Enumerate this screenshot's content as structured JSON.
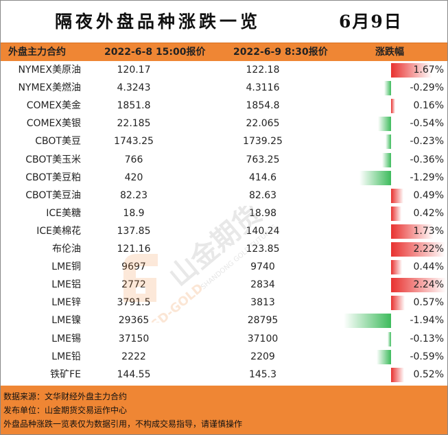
{
  "title": "隔夜外盘品种涨跌一览",
  "date": "6月9日",
  "headers": {
    "name": "外盘主力合约",
    "price1": "2022-6-8 15:00报价",
    "price2": "2022-6-9 8:30报价",
    "change": "涨跌幅"
  },
  "rows": [
    {
      "name": "NYMEX美原油",
      "p1": "120.17",
      "p2": "122.18",
      "chg": "1.67%",
      "v": 1.67
    },
    {
      "name": "NYMEX美燃油",
      "p1": "4.3243",
      "p2": "4.3116",
      "chg": "-0.29%",
      "v": -0.29
    },
    {
      "name": "COMEX美金",
      "p1": "1851.8",
      "p2": "1854.8",
      "chg": "0.16%",
      "v": 0.16
    },
    {
      "name": "COMEX美银",
      "p1": "22.185",
      "p2": "22.065",
      "chg": "-0.54%",
      "v": -0.54
    },
    {
      "name": "CBOT美豆",
      "p1": "1743.25",
      "p2": "1739.25",
      "chg": "-0.23%",
      "v": -0.23
    },
    {
      "name": "CBOT美玉米",
      "p1": "766",
      "p2": "763.25",
      "chg": "-0.36%",
      "v": -0.36
    },
    {
      "name": "CBOT美豆粕",
      "p1": "420",
      "p2": "414.6",
      "chg": "-1.29%",
      "v": -1.29
    },
    {
      "name": "CBOT美豆油",
      "p1": "82.23",
      "p2": "82.63",
      "chg": "0.49%",
      "v": 0.49
    },
    {
      "name": "ICE美糖",
      "p1": "18.9",
      "p2": "18.98",
      "chg": "0.42%",
      "v": 0.42
    },
    {
      "name": "ICE美棉花",
      "p1": "137.85",
      "p2": "140.24",
      "chg": "1.73%",
      "v": 1.73
    },
    {
      "name": "布伦油",
      "p1": "121.16",
      "p2": "123.85",
      "chg": "2.22%",
      "v": 2.22
    },
    {
      "name": "LME铜",
      "p1": "9697",
      "p2": "9740",
      "chg": "0.44%",
      "v": 0.44
    },
    {
      "name": "LME铝",
      "p1": "2772",
      "p2": "2834",
      "chg": "2.24%",
      "v": 2.24
    },
    {
      "name": "LME锌",
      "p1": "3791.5",
      "p2": "3813",
      "chg": "0.57%",
      "v": 0.57
    },
    {
      "name": "LME镍",
      "p1": "29365",
      "p2": "28795",
      "chg": "-1.94%",
      "v": -1.94
    },
    {
      "name": "LME锡",
      "p1": "37150",
      "p2": "37100",
      "chg": "-0.13%",
      "v": -0.13
    },
    {
      "name": "LME铅",
      "p1": "2222",
      "p2": "2209",
      "chg": "-0.59%",
      "v": -0.59
    },
    {
      "name": "铁矿FE",
      "p1": "144.55",
      "p2": "145.3",
      "chg": "0.52%",
      "v": 0.52
    }
  ],
  "colors": {
    "header_bg": "#ef8634",
    "footer_bg": "#ef8634",
    "up": "#e8312f",
    "down": "#3dbb5c"
  },
  "watermark": {
    "brand_cn": "山金期货",
    "brand_en": "SHANDONG GOLD FUTURES",
    "brand_logo": "SD-GOLD"
  },
  "footer": {
    "source": "数据来源：文华财经外盘主力合约",
    "publisher": "发布单位：山金期货交易运作中心",
    "disclaimer": "外盘品种涨跌一览表仅为数据引用，不构成交易指导，请谨慎操作"
  }
}
